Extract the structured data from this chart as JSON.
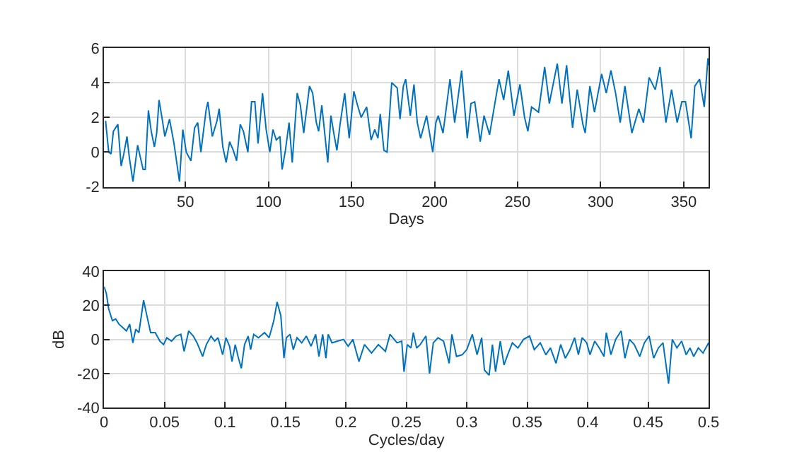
{
  "chart_data": [
    {
      "type": "line",
      "xlabel": "Days",
      "xlim": [
        1,
        365
      ],
      "xticks": [
        50,
        100,
        150,
        200,
        250,
        300,
        350
      ],
      "ylim": [
        -2,
        6
      ],
      "yticks": [
        -2,
        0,
        2,
        4,
        6
      ],
      "grid": true,
      "x": [
        1.9,
        3.8,
        5.2,
        6.6,
        9.3,
        11.3,
        12.9,
        14.8,
        16.2,
        18.4,
        21.2,
        24.5,
        25.8,
        27.7,
        29.4,
        31.3,
        32.7,
        34.1,
        36,
        37.6,
        40.4,
        43.1,
        46.4,
        48.4,
        50.5,
        53.3,
        55.5,
        57.4,
        59.3,
        62.4,
        63.5,
        66.2,
        69,
        70.3,
        72.5,
        74.5,
        76.6,
        78.8,
        80.8,
        83,
        84.9,
        87.6,
        89.8,
        91.8,
        93.7,
        96.4,
        98.6,
        100.8,
        102.7,
        104.7,
        106.9,
        108.2,
        110.2,
        112.4,
        114.3,
        117.3,
        119.2,
        121.2,
        124.7,
        126.6,
        128.8,
        130.2,
        132.1,
        135.7,
        137.6,
        139.3,
        141.2,
        143.1,
        145.9,
        148.6,
        151.4,
        153.6,
        155.8,
        159.1,
        161.8,
        164,
        165.9,
        167.3,
        169.5,
        171.4,
        174.2,
        177.5,
        179.2,
        181.2,
        182.6,
        185.4,
        187.6,
        189.6,
        191.6,
        195.2,
        198.9,
        200.8,
        202.2,
        205.1,
        209.3,
        212.1,
        216.3,
        219.7,
        221.9,
        224.2,
        227.5,
        229.8,
        233.1,
        238.8,
        241.6,
        244.4,
        247.8,
        251.4,
        254.2,
        256.2,
        258.4,
        262.6,
        266.3,
        269.1,
        273.9,
        276.7,
        279.5,
        283.1,
        285.9,
        289.3,
        290.7,
        293.5,
        296.3,
        300.6,
        303.4,
        306.2,
        309,
        311.8,
        314.6,
        318.8,
        323,
        325.8,
        329.2,
        332.9,
        335.7,
        339.3,
        342.7,
        346.1,
        348.9,
        351.1,
        354.5,
        356.7,
        359.6,
        362.4,
        364.6,
        365
      ],
      "series": [
        {
          "color": "#0072bd",
          "values": [
            1.8,
            0.0,
            -0.1,
            1.2,
            1.6,
            -0.8,
            -0.1,
            0.9,
            -0.3,
            -1.7,
            0.4,
            -1.0,
            -1.0,
            2.4,
            1.2,
            0.3,
            1.1,
            3.0,
            1.9,
            0.9,
            1.9,
            0.5,
            -1.7,
            1.3,
            0,
            -0.5,
            1.4,
            1.7,
            0,
            2.4,
            2.9,
            0.9,
            1.8,
            2.5,
            0.3,
            -0.6,
            0.6,
            0.1,
            -0.5,
            1.6,
            1.2,
            0,
            2.9,
            2.9,
            0.5,
            3.4,
            1.3,
            0,
            1.3,
            0.7,
            0.9,
            -1.0,
            0.1,
            1.7,
            -0.6,
            3.4,
            2.7,
            1.1,
            3.8,
            3.4,
            1.7,
            1.2,
            2.7,
            -0.6,
            2.1,
            1.1,
            0.1,
            1.6,
            3.4,
            0.8,
            3.5,
            2.7,
            2.0,
            2.6,
            0.7,
            1.3,
            0.8,
            2.2,
            0.1,
            0,
            4.0,
            3.7,
            1.9,
            3.8,
            4.2,
            2.1,
            3.9,
            1.7,
            0.8,
            2.1,
            0.0,
            1.7,
            2.1,
            1.1,
            4.2,
            1.7,
            4.7,
            0.8,
            2.8,
            2.9,
            0.6,
            2.1,
            1.0,
            4.2,
            3.0,
            4.7,
            2.1,
            3.9,
            2.0,
            1.2,
            2.6,
            2.3,
            4.9,
            2.8,
            5.1,
            2.8,
            5.0,
            1.4,
            3.6,
            1.6,
            1.1,
            3.8,
            2.3,
            4.5,
            3.4,
            4.7,
            3.4,
            1.7,
            3.8,
            1.1,
            2.5,
            1.7,
            4.3,
            3.6,
            4.9,
            1.7,
            3.6,
            1.7,
            2.9,
            2.9,
            0.8,
            3.8,
            4.2,
            2.6,
            5.4,
            5.0
          ]
        }
      ]
    },
    {
      "type": "line",
      "xlabel": "Cycles/day",
      "ylabel": "dB",
      "xlim": [
        0,
        0.5
      ],
      "xticks": [
        0,
        0.05,
        0.1,
        0.15,
        0.2,
        0.25,
        0.3,
        0.35,
        0.4,
        0.45,
        0.5
      ],
      "ylim": [
        -40,
        40
      ],
      "yticks": [
        -40,
        -20,
        0,
        20,
        40
      ],
      "grid": true,
      "x": [
        0,
        0.0019,
        0.0038,
        0.0069,
        0.0096,
        0.0123,
        0.0154,
        0.0185,
        0.0212,
        0.0238,
        0.0262,
        0.0288,
        0.0327,
        0.0354,
        0.0385,
        0.0423,
        0.0462,
        0.0492,
        0.0519,
        0.0558,
        0.0596,
        0.0635,
        0.0662,
        0.07,
        0.0738,
        0.0769,
        0.0815,
        0.0846,
        0.0885,
        0.0915,
        0.0942,
        0.0981,
        0.1008,
        0.1038,
        0.1058,
        0.1085,
        0.1108,
        0.1135,
        0.1162,
        0.1192,
        0.1212,
        0.1238,
        0.1277,
        0.1327,
        0.1365,
        0.1404,
        0.1431,
        0.1462,
        0.1488,
        0.1508,
        0.1538,
        0.1565,
        0.1596,
        0.1635,
        0.1673,
        0.1712,
        0.175,
        0.1777,
        0.1808,
        0.1835,
        0.1854,
        0.1885,
        0.1931,
        0.1981,
        0.2019,
        0.2058,
        0.2108,
        0.2154,
        0.2212,
        0.2269,
        0.2327,
        0.2365,
        0.2423,
        0.2462,
        0.2481,
        0.2508,
        0.2538,
        0.2558,
        0.2585,
        0.2615,
        0.2662,
        0.2692,
        0.2723,
        0.2762,
        0.2808,
        0.2854,
        0.2877,
        0.2915,
        0.2962,
        0.3,
        0.3046,
        0.3085,
        0.3123,
        0.3146,
        0.3185,
        0.3212,
        0.3238,
        0.3277,
        0.3308,
        0.3338,
        0.3377,
        0.3423,
        0.3469,
        0.3519,
        0.3558,
        0.3608,
        0.3654,
        0.3692,
        0.3738,
        0.3777,
        0.3815,
        0.3854,
        0.3892,
        0.3923,
        0.3954,
        0.3992,
        0.4019,
        0.4058,
        0.4096,
        0.4135,
        0.4154,
        0.4192,
        0.4231,
        0.4277,
        0.4308,
        0.4346,
        0.4385,
        0.4431,
        0.4469,
        0.4508,
        0.4546,
        0.4585,
        0.4623,
        0.4669,
        0.47,
        0.4738,
        0.4777,
        0.4815,
        0.4846,
        0.4877,
        0.4915,
        0.4954,
        0.5
      ],
      "series": [
        {
          "color": "#0072bd",
          "values": [
            31,
            27,
            18,
            11,
            12,
            9,
            7,
            5,
            9,
            -2,
            6,
            4,
            23,
            14,
            4,
            4,
            -1,
            -3,
            1,
            -1,
            2,
            3,
            -7,
            5,
            2,
            -2,
            -10,
            -3,
            2,
            -1,
            1,
            -9,
            1,
            -4,
            -13,
            -3,
            -10,
            -17,
            -3,
            2,
            -6,
            3,
            1,
            4,
            1,
            11,
            22,
            14,
            -11,
            1,
            3,
            -6,
            1,
            -2,
            2,
            -4,
            3,
            -10,
            3,
            -11,
            3,
            -2,
            -1,
            0,
            -4,
            0,
            -13,
            -3,
            -8,
            -3,
            -7,
            3,
            -2,
            -1,
            -19,
            -3,
            -5,
            4,
            -5,
            -3,
            2,
            -20,
            -2,
            1,
            -1,
            -14,
            3,
            -10,
            -9,
            -6,
            3,
            -9,
            1,
            -18,
            -21,
            -3,
            -19,
            -1,
            -15,
            -9,
            -2,
            -5,
            0,
            2,
            -6,
            -2,
            -9,
            -5,
            -14,
            -3,
            -11,
            -6,
            1,
            -9,
            1,
            -2,
            -9,
            -1,
            -5,
            -10,
            4,
            -9,
            0,
            5,
            -11,
            0,
            -3,
            -10,
            -2,
            2,
            -11,
            -5,
            -2,
            -26,
            0,
            -5,
            -1,
            -9,
            -5,
            -10,
            -5,
            -8,
            -2
          ]
        }
      ]
    }
  ]
}
